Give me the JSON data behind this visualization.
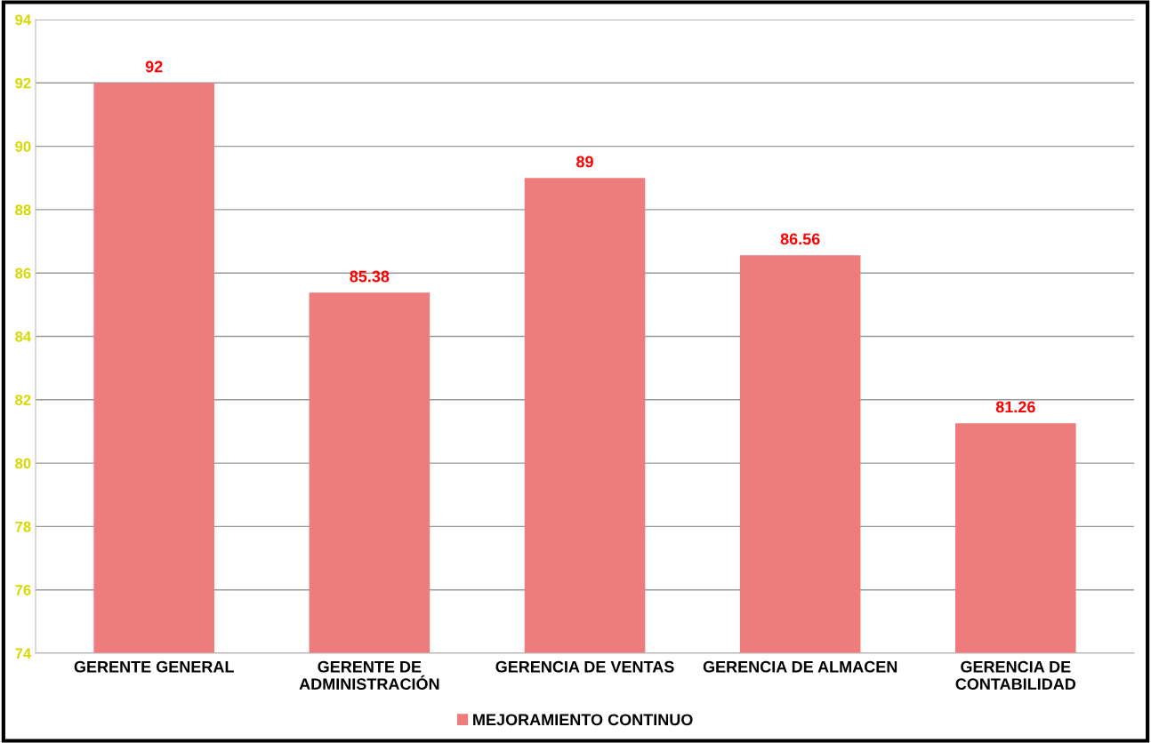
{
  "chart_data": {
    "type": "bar",
    "categories": [
      "GERENTE GENERAL",
      "GERENTE DE\nADMINISTRACIÓN",
      "GERENCIA DE VENTAS",
      "GERENCIA DE ALMACEN",
      "GERENCIA DE\nCONTABILIDAD"
    ],
    "series": [
      {
        "name": "MEJORAMIENTO CONTINUO",
        "color": "#ee7c7c",
        "values": [
          92,
          85.38,
          89,
          86.56,
          81.26
        ]
      }
    ],
    "ylim": [
      74,
      94
    ],
    "yticks": [
      74,
      76,
      78,
      80,
      82,
      84,
      86,
      88,
      90,
      92,
      94
    ],
    "grid": "y",
    "legend": "bottom",
    "data_labels": true
  }
}
